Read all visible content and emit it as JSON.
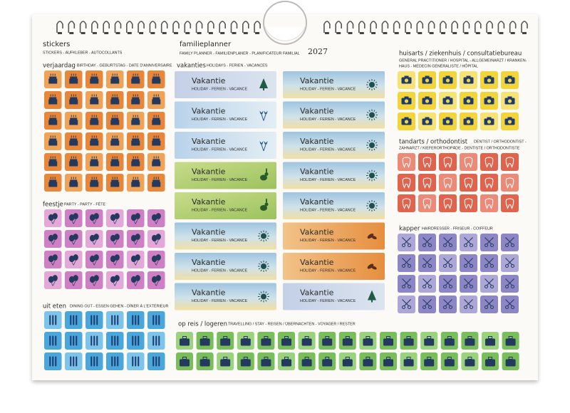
{
  "stickers": {
    "title": "stickers",
    "subtitle": "STICKERS - AUFKLEBER - AUTOCOLLANTS"
  },
  "planner": {
    "title": "familieplanner",
    "subtitle": "FAMILY PLANNER - FAMILIENPLANER - PLANIFICATEUR FAMILIAL",
    "year": "2027"
  },
  "birthday": {
    "title": "verjaardag",
    "subtitle": "BIRTHDAY - GEBURTSTAG - DATE D'ANNIVERSAIRE"
  },
  "party": {
    "title": "feestje",
    "subtitle": "PARTY - PARTY - FÊTE"
  },
  "dining": {
    "title": "uit eten",
    "subtitle": "DINING OUT - ESSEN GEHEN - DÎNER À L'EXTÉRIEUR"
  },
  "vacations": {
    "title": "vakanties",
    "subtitle": "HOLIDAYS - FERIEN - VACANCES",
    "labels": [
      {
        "title": "Vakantie",
        "subtitle": "HOLIDAY - FERIEN - VACANCE",
        "style": "tree"
      },
      {
        "title": "Vakantie",
        "subtitle": "HOLIDAY - FERIEN - VACANCE",
        "style": "tulip"
      },
      {
        "title": "Vakantie",
        "subtitle": "HOLIDAY - FERIEN - VACANCE",
        "style": "tulip"
      },
      {
        "title": "Vakantie",
        "subtitle": "HOLIDAY - FERIEN - VACANCE",
        "style": "rabbit"
      },
      {
        "title": "Vakantie",
        "subtitle": "HOLIDAY - FERIEN - VACANCE",
        "style": "rabbit"
      },
      {
        "title": "Vakantie",
        "subtitle": "HOLIDAY - FERIEN - VACANCE",
        "style": "sun"
      },
      {
        "title": "Vakantie",
        "subtitle": "HOLIDAY - FERIEN - VACANCE",
        "style": "sun"
      },
      {
        "title": "Vakantie",
        "subtitle": "HOLIDAY - FERIEN - VACANCE",
        "style": "sun"
      },
      {
        "title": "Vakantie",
        "subtitle": "HOLIDAY - FERIEN - VACANCE",
        "style": "sun"
      },
      {
        "title": "Vakantie",
        "subtitle": "HOLIDAY - FERIEN - VACANCE",
        "style": "sun"
      },
      {
        "title": "Vakantie",
        "subtitle": "HOLIDAY - FERIEN - VACANCE",
        "style": "sun"
      },
      {
        "title": "Vakantie",
        "subtitle": "HOLIDAY - FERIEN - VACANCE",
        "style": "sun"
      },
      {
        "title": "Vakantie",
        "subtitle": "HOLIDAY - FERIEN - VACANCE",
        "style": "sun"
      },
      {
        "title": "Vakantie",
        "subtitle": "HOLIDAY - FERIEN - VACANCE",
        "style": "leaf"
      },
      {
        "title": "Vakantie",
        "subtitle": "HOLIDAY - FERIEN - VACANCE",
        "style": "leaf"
      },
      {
        "title": "Vakantie",
        "subtitle": "HOLIDAY - FERIEN - VACANCE",
        "style": "tree"
      }
    ]
  },
  "doctor": {
    "title": "huisarts / ziekenhuis / consultatiebureau",
    "subtitle_lines": [
      "GENERAL PRACTITIONER / HOSPITAL - ALLGEMEINARZT / KRANKEN-",
      "HAUS - MÉDECIN GÉNÉRALISTE / HÔPITAL"
    ]
  },
  "dentist": {
    "title": "tandarts / orthodontist",
    "subtitle_lines": [
      "DENTIST / ORTHODONTIST -",
      "ZAHNARZT / KIEFERORTHOPÄDE - DENTISTE / ORTHODONTISTE"
    ]
  },
  "hairdresser": {
    "title": "kapper",
    "subtitle": "HAIRDRESSER - FRISEUR - COIFFEUR"
  },
  "travel": {
    "title": "op reis / logeren",
    "subtitle": "TRAVELLING / STAY - REISEN / ÜBERNACHTEN - VOYAGER / RESTER"
  }
}
